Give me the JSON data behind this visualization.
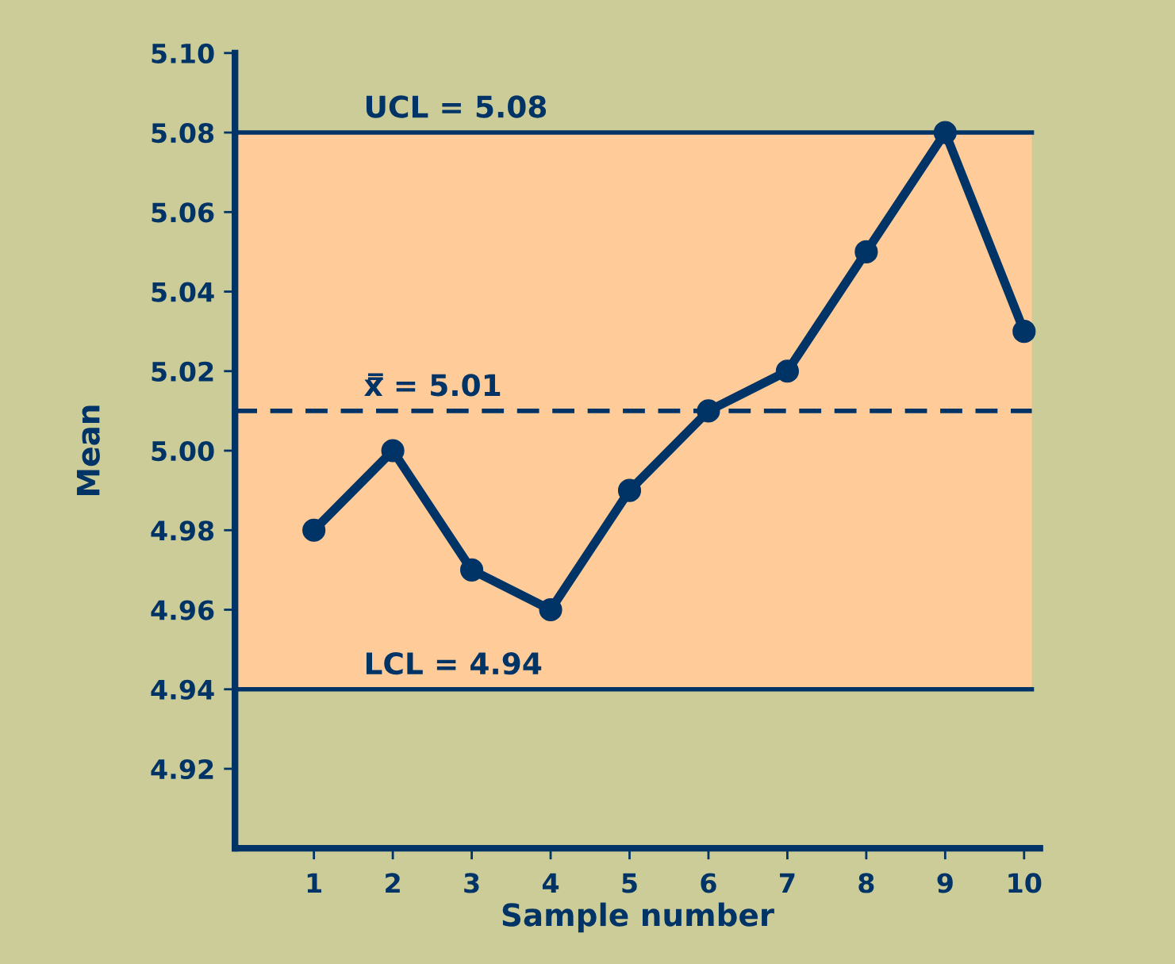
{
  "chart_data": {
    "type": "line",
    "xlabel": "Sample number",
    "ylabel": "Mean",
    "x": [
      1,
      2,
      3,
      4,
      5,
      6,
      7,
      8,
      9,
      10
    ],
    "series": [
      {
        "color": "#003366",
        "values": [
          4.98,
          5.0,
          4.97,
          4.96,
          4.99,
          5.01,
          5.02,
          5.05,
          5.08,
          5.03
        ]
      }
    ],
    "xlim": [
      0,
      10.2
    ],
    "xticks": [
      1,
      2,
      3,
      4,
      5,
      6,
      7,
      8,
      9,
      10
    ],
    "ylim": [
      4.9,
      5.1
    ],
    "yticks": [
      {
        "value": 4.92,
        "label": "4.92"
      },
      {
        "value": 4.94,
        "label": "4.94"
      },
      {
        "value": 4.96,
        "label": "4.96"
      },
      {
        "value": 4.98,
        "label": "4.98"
      },
      {
        "value": 5.0,
        "label": "5.00"
      },
      {
        "value": 5.02,
        "label": "5.02"
      },
      {
        "value": 5.04,
        "label": "5.04"
      },
      {
        "value": 5.06,
        "label": "5.06"
      },
      {
        "value": 5.08,
        "label": "5.08"
      },
      {
        "value": 5.1,
        "label": "5.10"
      }
    ],
    "bands": [
      {
        "axis": "y",
        "from": 4.94,
        "to": 5.08,
        "color": "#ffcc99"
      }
    ],
    "ref_lines": [
      {
        "axis": "y",
        "value": 5.08,
        "label": "UCL = 5.08",
        "color": "#003366",
        "line_style": "solid"
      },
      {
        "axis": "y",
        "value": 5.01,
        "label": "x̿ = 5.01",
        "color": "#003366",
        "line_style": "dashed"
      },
      {
        "axis": "y",
        "value": 4.94,
        "label": "LCL = 4.94",
        "color": "#003366",
        "line_style": "solid"
      }
    ],
    "marker": "circle",
    "line_style": "solid",
    "grid": false,
    "legend": false
  }
}
